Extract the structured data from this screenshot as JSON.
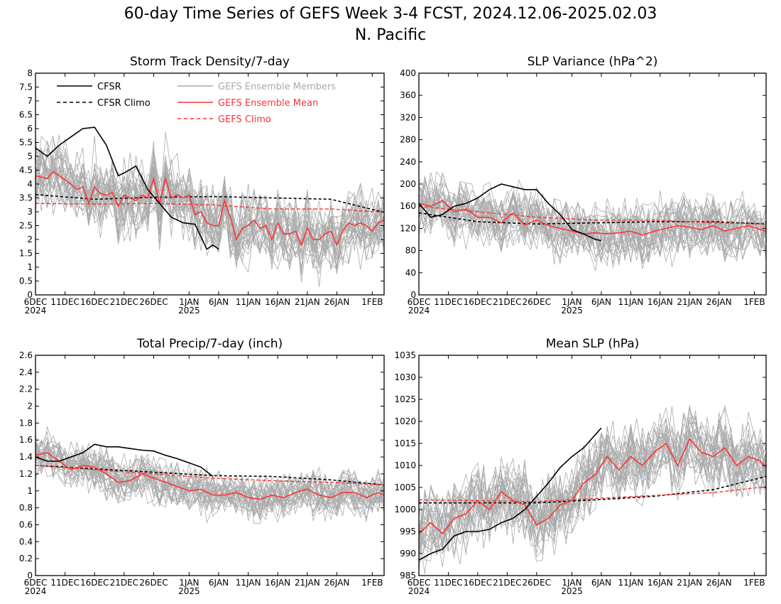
{
  "figure": {
    "title_line1": "60-day Time Series of GEFS Week 3-4 FCST, 2024.12.06-2025.02.03",
    "title_line2": "N. Pacific"
  },
  "colors": {
    "cfsr": "#000000",
    "members": "#aaaaaa",
    "ens_mean": "#ff3333",
    "gefs_climo": "#ff3333",
    "frame": "#000000"
  },
  "legend": {
    "cfsr": "CFSR",
    "cfsr_climo": "CFSR Climo",
    "members": "GEFS Ensemble Members",
    "ens_mean": "GEFS Ensemble Mean",
    "gefs_climo": "GEFS Climo"
  },
  "x_ticks": [
    "6DEC",
    "11DEC",
    "16DEC",
    "21DEC",
    "26DEC",
    "1JAN",
    "6JAN",
    "11JAN",
    "16JAN",
    "21JAN",
    "26JAN",
    "1FEB"
  ],
  "x_tick_sub": {
    "6DEC": "2024",
    "1JAN": "2025"
  },
  "chart_data": [
    {
      "type": "line",
      "title": "Storm Track Density/7-day",
      "x_start": "2024-12-06",
      "x_end": "2025-02-03",
      "ylim": [
        0,
        8
      ],
      "y_ticks": [
        "0",
        "0.5",
        "1",
        "1.5",
        "2",
        "2.5",
        "3",
        "3.5",
        "4",
        "4.5",
        "5",
        "5.5",
        "6",
        "6.5",
        "7",
        "7.5",
        "8"
      ],
      "members_count": 30,
      "members_spread": 1.1,
      "series": [
        {
          "name": "CFSR",
          "dates": [
            "2024-12-06",
            "2024-12-08",
            "2024-12-10",
            "2024-12-12",
            "2024-12-14",
            "2024-12-16",
            "2024-12-18",
            "2024-12-20",
            "2024-12-21",
            "2024-12-23",
            "2024-12-25",
            "2024-12-27",
            "2024-12-29",
            "2024-12-31",
            "2025-01-02",
            "2025-01-04",
            "2025-01-05",
            "2025-01-06"
          ],
          "values": [
            5.3,
            5.0,
            5.4,
            5.7,
            6.0,
            6.05,
            5.4,
            4.3,
            4.4,
            4.65,
            3.8,
            3.3,
            2.8,
            2.6,
            2.55,
            1.65,
            1.8,
            1.65
          ]
        },
        {
          "name": "CFSR Climo",
          "dates": [
            "2024-12-06",
            "2024-12-16",
            "2024-12-26",
            "2025-01-05",
            "2025-01-15",
            "2025-01-25",
            "2025-02-03"
          ],
          "values": [
            3.62,
            3.45,
            3.52,
            3.55,
            3.5,
            3.45,
            2.98
          ]
        },
        {
          "name": "GEFS Ensemble Mean",
          "dates": [
            "2024-12-06",
            "2024-12-08",
            "2024-12-09",
            "2024-12-10",
            "2024-12-12",
            "2024-12-13",
            "2024-12-14",
            "2024-12-15",
            "2024-12-16",
            "2024-12-17",
            "2024-12-18",
            "2024-12-19",
            "2024-12-20",
            "2024-12-21",
            "2024-12-22",
            "2024-12-23",
            "2024-12-24",
            "2024-12-25",
            "2024-12-26",
            "2024-12-27",
            "2024-12-28",
            "2024-12-29",
            "2024-12-30",
            "2024-12-31",
            "2025-01-01",
            "2025-01-02",
            "2025-01-03",
            "2025-01-04",
            "2025-01-05",
            "2025-01-06",
            "2025-01-07",
            "2025-01-08",
            "2025-01-09",
            "2025-01-10",
            "2025-01-11",
            "2025-01-12",
            "2025-01-13",
            "2025-01-14",
            "2025-01-15",
            "2025-01-16",
            "2025-01-17",
            "2025-01-18",
            "2025-01-19",
            "2025-01-20",
            "2025-01-21",
            "2025-01-22",
            "2025-01-23",
            "2025-01-24",
            "2025-01-25",
            "2025-01-26",
            "2025-01-27",
            "2025-01-28",
            "2025-01-29",
            "2025-01-30",
            "2025-01-31",
            "2025-02-01",
            "2025-02-02",
            "2025-02-03"
          ],
          "values": [
            4.3,
            4.2,
            4.45,
            4.3,
            4.0,
            3.8,
            3.9,
            3.3,
            3.9,
            3.65,
            3.6,
            3.7,
            3.2,
            3.6,
            3.5,
            3.4,
            3.6,
            3.5,
            4.2,
            3.3,
            4.2,
            3.5,
            3.6,
            3.5,
            3.6,
            2.9,
            3.0,
            2.6,
            2.5,
            2.5,
            3.4,
            2.8,
            2.0,
            2.4,
            2.5,
            2.7,
            2.4,
            2.5,
            2.0,
            2.6,
            2.2,
            2.2,
            2.3,
            1.8,
            2.4,
            2.0,
            2.0,
            2.2,
            2.3,
            1.8,
            2.3,
            2.6,
            2.5,
            2.6,
            2.5,
            2.3,
            2.6,
            2.7
          ]
        },
        {
          "name": "GEFS Climo",
          "dates": [
            "2024-12-06",
            "2024-12-16",
            "2024-12-26",
            "2025-01-05",
            "2025-01-15",
            "2025-01-25",
            "2025-02-03"
          ],
          "values": [
            3.3,
            3.28,
            3.3,
            3.25,
            3.1,
            3.1,
            2.98
          ]
        }
      ]
    },
    {
      "type": "line",
      "title": "SLP Variance (hPa^2)",
      "x_start": "2024-12-06",
      "x_end": "2025-02-03",
      "ylim": [
        0,
        400
      ],
      "y_ticks": [
        "0",
        "40",
        "80",
        "120",
        "160",
        "200",
        "240",
        "280",
        "320",
        "360",
        "400"
      ],
      "members_count": 30,
      "members_spread": 45,
      "series": [
        {
          "name": "CFSR",
          "dates": [
            "2024-12-06",
            "2024-12-08",
            "2024-12-10",
            "2024-12-12",
            "2024-12-14",
            "2024-12-16",
            "2024-12-18",
            "2024-12-20",
            "2024-12-22",
            "2024-12-24",
            "2024-12-26",
            "2024-12-28",
            "2024-12-30",
            "2025-01-01",
            "2025-01-03",
            "2025-01-05",
            "2025-01-06"
          ],
          "values": [
            165,
            140,
            145,
            160,
            165,
            175,
            190,
            200,
            195,
            190,
            190,
            165,
            145,
            118,
            110,
            100,
            98
          ]
        },
        {
          "name": "CFSR Climo",
          "dates": [
            "2024-12-06",
            "2024-12-16",
            "2024-12-26",
            "2025-01-05",
            "2025-01-15",
            "2025-01-25",
            "2025-02-03"
          ],
          "values": [
            148,
            132,
            128,
            130,
            132,
            132,
            128
          ]
        },
        {
          "name": "GEFS Ensemble Mean",
          "dates": [
            "2024-12-06",
            "2024-12-08",
            "2024-12-10",
            "2024-12-12",
            "2024-12-14",
            "2024-12-16",
            "2024-12-18",
            "2024-12-20",
            "2024-12-22",
            "2024-12-24",
            "2024-12-26",
            "2024-12-28",
            "2024-12-30",
            "2025-01-01",
            "2025-01-03",
            "2025-01-05",
            "2025-01-07",
            "2025-01-09",
            "2025-01-11",
            "2025-01-13",
            "2025-01-15",
            "2025-01-17",
            "2025-01-19",
            "2025-01-21",
            "2025-01-23",
            "2025-01-25",
            "2025-01-27",
            "2025-01-29",
            "2025-01-31",
            "2025-02-02",
            "2025-02-03"
          ],
          "values": [
            165,
            160,
            170,
            150,
            155,
            140,
            140,
            130,
            148,
            126,
            135,
            125,
            120,
            115,
            110,
            112,
            110,
            112,
            115,
            108,
            115,
            120,
            125,
            122,
            118,
            125,
            115,
            120,
            125,
            118,
            115
          ]
        },
        {
          "name": "GEFS Climo",
          "dates": [
            "2024-12-06",
            "2024-12-16",
            "2024-12-26",
            "2025-01-05",
            "2025-01-15",
            "2025-01-25",
            "2025-02-03"
          ],
          "values": [
            160,
            150,
            140,
            135,
            135,
            130,
            128
          ]
        }
      ]
    },
    {
      "type": "line",
      "title": "Total Precip/7-day (inch)",
      "x_start": "2024-12-06",
      "x_end": "2025-02-03",
      "ylim": [
        0,
        2.6
      ],
      "y_ticks": [
        "0",
        "0.2",
        "0.4",
        "0.6",
        "0.8",
        "1",
        "1.2",
        "1.4",
        "1.6",
        "1.8",
        "2",
        "2.2",
        "2.4",
        "2.6"
      ],
      "members_count": 30,
      "members_spread": 0.22,
      "series": [
        {
          "name": "CFSR",
          "dates": [
            "2024-12-06",
            "2024-12-08",
            "2024-12-10",
            "2024-12-12",
            "2024-12-14",
            "2024-12-16",
            "2024-12-18",
            "2024-12-20",
            "2024-12-22",
            "2024-12-24",
            "2024-12-26",
            "2024-12-28",
            "2024-12-30",
            "2025-01-01",
            "2025-01-03",
            "2025-01-05"
          ],
          "values": [
            1.4,
            1.35,
            1.35,
            1.4,
            1.45,
            1.55,
            1.52,
            1.52,
            1.5,
            1.48,
            1.47,
            1.42,
            1.38,
            1.33,
            1.28,
            1.17
          ]
        },
        {
          "name": "CFSR Climo",
          "dates": [
            "2024-12-06",
            "2024-12-16",
            "2024-12-26",
            "2025-01-05",
            "2025-01-15",
            "2025-01-25",
            "2025-02-03"
          ],
          "values": [
            1.3,
            1.26,
            1.22,
            1.18,
            1.17,
            1.13,
            1.07
          ]
        },
        {
          "name": "GEFS Ensemble Mean",
          "dates": [
            "2024-12-06",
            "2024-12-08",
            "2024-12-10",
            "2024-12-12",
            "2024-12-14",
            "2024-12-16",
            "2024-12-18",
            "2024-12-20",
            "2024-12-22",
            "2024-12-24",
            "2024-12-26",
            "2024-12-28",
            "2024-12-30",
            "2025-01-01",
            "2025-01-03",
            "2025-01-05",
            "2025-01-07",
            "2025-01-09",
            "2025-01-11",
            "2025-01-13",
            "2025-01-15",
            "2025-01-17",
            "2025-01-19",
            "2025-01-21",
            "2025-01-23",
            "2025-01-25",
            "2025-01-27",
            "2025-01-29",
            "2025-01-31",
            "2025-02-02",
            "2025-02-03"
          ],
          "values": [
            1.42,
            1.45,
            1.35,
            1.25,
            1.3,
            1.28,
            1.2,
            1.1,
            1.12,
            1.2,
            1.15,
            1.1,
            1.05,
            1.0,
            1.02,
            0.95,
            0.95,
            0.98,
            0.92,
            0.9,
            0.95,
            0.92,
            0.98,
            1.02,
            0.95,
            0.92,
            0.98,
            0.98,
            0.92,
            0.98,
            0.95
          ]
        },
        {
          "name": "GEFS Climo",
          "dates": [
            "2024-12-06",
            "2024-12-16",
            "2024-12-26",
            "2025-01-05",
            "2025-01-15",
            "2025-01-25",
            "2025-02-03"
          ],
          "values": [
            1.3,
            1.25,
            1.2,
            1.15,
            1.12,
            1.1,
            1.07
          ]
        }
      ]
    },
    {
      "type": "line",
      "title": "Mean SLP (hPa)",
      "x_start": "2024-12-06",
      "x_end": "2025-02-03",
      "ylim": [
        985,
        1035
      ],
      "y_ticks": [
        "985",
        "990",
        "995",
        "1000",
        "1005",
        "1010",
        "1015",
        "1020",
        "1025",
        "1030",
        "1035"
      ],
      "members_count": 30,
      "members_spread": 7,
      "series": [
        {
          "name": "CFSR",
          "dates": [
            "2024-12-06",
            "2024-12-08",
            "2024-12-10",
            "2024-12-12",
            "2024-12-14",
            "2024-12-16",
            "2024-12-18",
            "2024-12-20",
            "2024-12-22",
            "2024-12-24",
            "2024-12-26",
            "2024-12-28",
            "2024-12-30",
            "2025-01-01",
            "2025-01-03",
            "2025-01-05",
            "2025-01-06"
          ],
          "values": [
            988.5,
            990,
            991,
            994,
            995,
            995,
            995.5,
            997,
            998,
            1000,
            1003,
            1006,
            1009.5,
            1012,
            1014,
            1017,
            1018.5
          ]
        },
        {
          "name": "CFSR Climo",
          "dates": [
            "2024-12-06",
            "2024-12-16",
            "2024-12-26",
            "2025-01-05",
            "2025-01-15",
            "2025-01-25",
            "2025-02-03"
          ],
          "values": [
            1001.5,
            1001.5,
            1001.5,
            1002.2,
            1003,
            1004.5,
            1007.5
          ]
        },
        {
          "name": "GEFS Ensemble Mean",
          "dates": [
            "2024-12-06",
            "2024-12-08",
            "2024-12-10",
            "2024-12-12",
            "2024-12-14",
            "2024-12-16",
            "2024-12-18",
            "2024-12-20",
            "2024-12-22",
            "2024-12-24",
            "2024-12-26",
            "2024-12-28",
            "2024-12-30",
            "2025-01-01",
            "2025-01-03",
            "2025-01-05",
            "2025-01-07",
            "2025-01-09",
            "2025-01-11",
            "2025-01-13",
            "2025-01-15",
            "2025-01-17",
            "2025-01-19",
            "2025-01-21",
            "2025-01-23",
            "2025-01-25",
            "2025-01-27",
            "2025-01-29",
            "2025-01-31",
            "2025-02-02",
            "2025-02-03"
          ],
          "values": [
            994.5,
            997,
            994.5,
            998,
            999,
            1002,
            1000,
            1004,
            1002,
            1001,
            996.5,
            998,
            1001,
            1002,
            1006,
            1008,
            1012,
            1009,
            1012,
            1010,
            1013,
            1015,
            1010,
            1016,
            1013,
            1012,
            1014,
            1010,
            1012,
            1011,
            1009.5
          ]
        },
        {
          "name": "GEFS Climo",
          "dates": [
            "2024-12-06",
            "2024-12-16",
            "2024-12-26",
            "2025-01-05",
            "2025-01-15",
            "2025-01-25",
            "2025-02-03"
          ],
          "values": [
            1002.2,
            1002,
            1001.8,
            1002.5,
            1003.2,
            1003.8,
            1005.2
          ]
        }
      ]
    }
  ]
}
